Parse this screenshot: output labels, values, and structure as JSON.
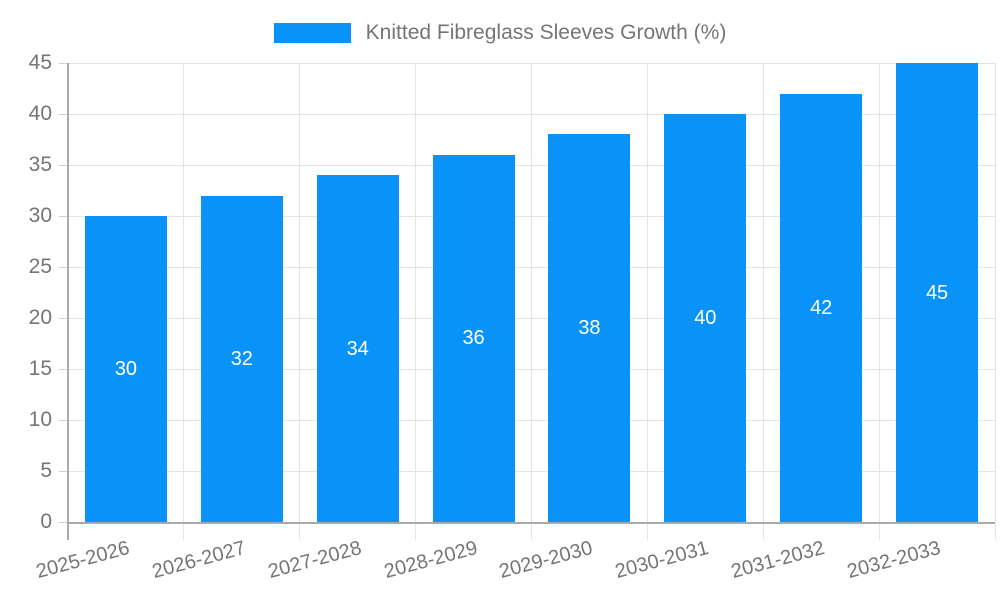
{
  "chart_data": {
    "type": "bar",
    "title": "",
    "legend": "Knitted Fibreglass Sleeves Growth (%)",
    "legend_position": "top",
    "series": [
      {
        "name": "Knitted Fibreglass Sleeves Growth (%)",
        "values": [
          30,
          32,
          34,
          36,
          38,
          40,
          42,
          45
        ]
      }
    ],
    "categories": [
      "2025-2026",
      "2026-2027",
      "2027-2028",
      "2028-2029",
      "2029-2030",
      "2030-2031",
      "2031-2032",
      "2032-2033"
    ],
    "value_labels": [
      "30",
      "32",
      "34",
      "36",
      "38",
      "40",
      "42",
      "45"
    ],
    "xlabel": "",
    "ylabel": "",
    "ylim": [
      0,
      45
    ],
    "yticks": [
      0,
      5,
      10,
      15,
      20,
      25,
      30,
      35,
      40,
      45
    ],
    "grid": true,
    "x_label_rotation_deg": -15,
    "colors": {
      "bar": "#0992f8",
      "text": "#757575",
      "grid": "#e4e4e4",
      "tick": "#cfcfcf",
      "axis": "#aaaaaa",
      "bar_label": "#ffffff",
      "background": "#ffffff"
    }
  }
}
